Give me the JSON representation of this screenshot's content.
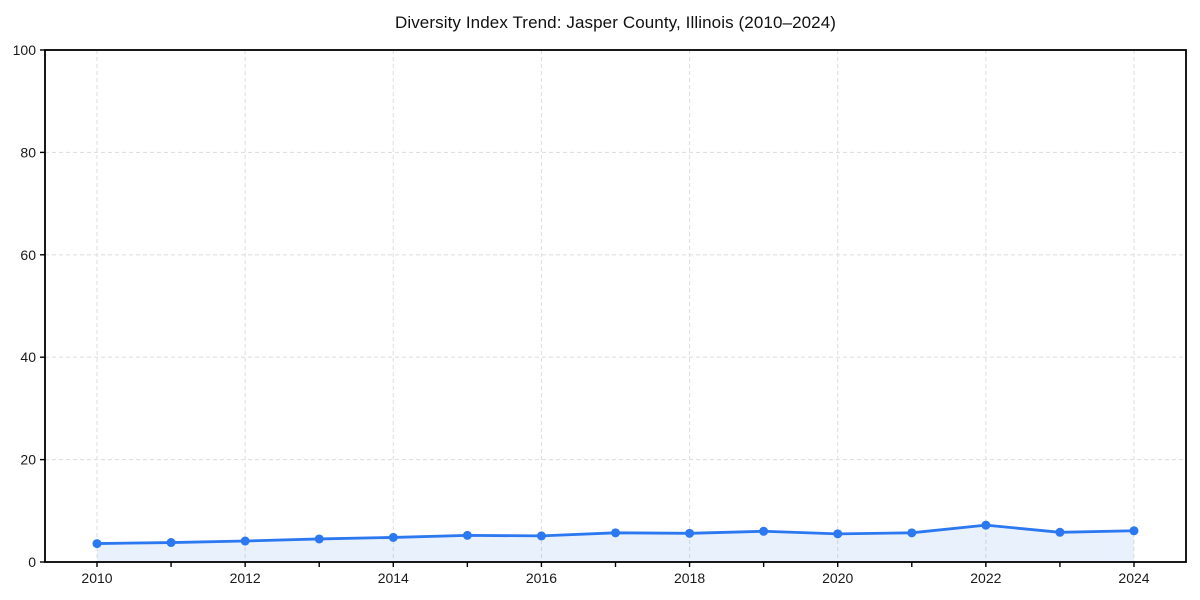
{
  "page": {
    "background": "#ffffff"
  },
  "chart_data": {
    "type": "line",
    "title": "Diversity Index Trend: Jasper County, Illinois (2010–2024)",
    "x": [
      2010,
      2011,
      2012,
      2013,
      2014,
      2015,
      2016,
      2017,
      2018,
      2019,
      2020,
      2021,
      2022,
      2023,
      2024
    ],
    "series": [
      {
        "name": "Diversity Index",
        "values": [
          3.6,
          3.8,
          4.1,
          4.5,
          4.8,
          5.2,
          5.1,
          5.7,
          5.6,
          6.0,
          5.5,
          5.7,
          7.2,
          5.8,
          6.1
        ]
      }
    ],
    "xlabel": "",
    "ylabel": "",
    "ylim": [
      0,
      100
    ],
    "y_ticks": [
      0,
      20,
      40,
      60,
      80,
      100
    ],
    "x_tick_labels": [
      "2010",
      "2012",
      "2014",
      "2016",
      "2018",
      "2020",
      "2022",
      "2024"
    ],
    "grid": "dashed",
    "legend": "none",
    "marker": "circle",
    "area_fill": true,
    "colors": {
      "line": "#2b78f0",
      "marker": "#2b78f0",
      "area_fill": "rgba(43,120,240,0.10)",
      "grid": "#e0e0e0",
      "spine": "#000000",
      "tick_label": "#1a1a1a",
      "title": "#111111"
    }
  }
}
